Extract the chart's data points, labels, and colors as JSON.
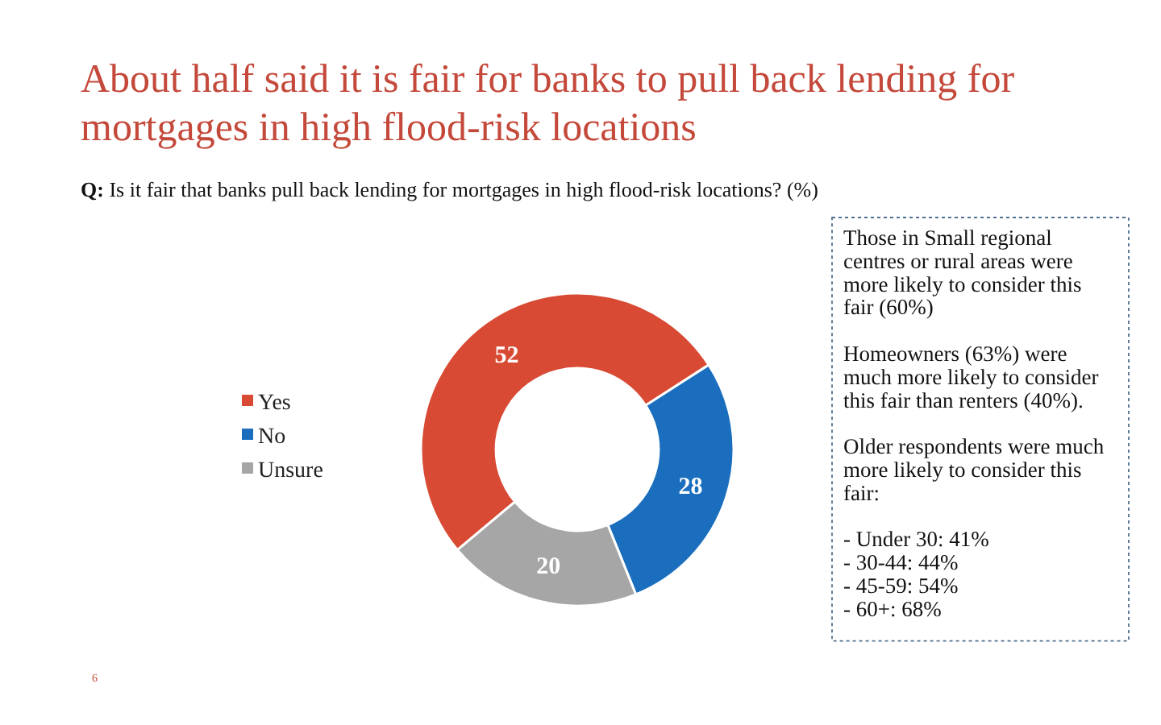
{
  "chart_data": {
    "type": "donut",
    "title": "About half said it is fair for banks to pull back lending for mortgages in high flood-risk locations",
    "subtitle": "Q: Is it fair that banks pull back lending for mortgages in high flood-risk locations? (%)",
    "categories": [
      "Yes",
      "No",
      "Unsure"
    ],
    "values": [
      52,
      28,
      20
    ],
    "colors": [
      "#d84a34",
      "#1a6ebd",
      "#a6a6a6"
    ],
    "data_labels": true,
    "legend": "left",
    "annotations": [
      "Those in Small regional\ncentres or rural areas were\nmore likely to consider this\nfair (60%)",
      "Homeowners (63%) were\nmuch more likely to consider\nthis fair than renters (40%).",
      "Older respondents were much\nmore likely to consider this\nfair:\n\n- Under 30: 41%\n- 30-44: 44%\n- 45-59: 54%\n- 60+: 68%",
      "6"
    ]
  }
}
